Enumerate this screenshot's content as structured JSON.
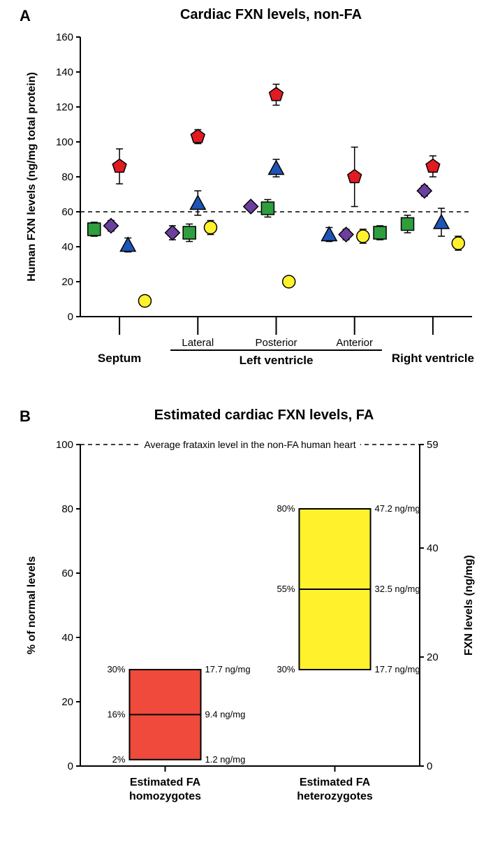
{
  "panelA": {
    "label": "A",
    "title": "Cardiac FXN levels, non-FA",
    "title_fontsize": 20,
    "ylabel": "Human FXN levels (ng/mg total protein)",
    "ylabel_fontsize": 16,
    "ylim": [
      0,
      160
    ],
    "ytick_step": 20,
    "refline_y": 60,
    "axis_color": "#000000",
    "grid_dash_color": "#000000",
    "background": "#ffffff",
    "x_categories": [
      "Septum",
      "Lateral",
      "Posterior",
      "Anterior",
      "Right ventricle"
    ],
    "x_group_label": "Left ventricle",
    "x_group_span": [
      1,
      3
    ],
    "marker_series": [
      {
        "shape": "square",
        "fill": "#2e9e3e",
        "stroke": "#000000"
      },
      {
        "shape": "diamond",
        "fill": "#6a3fa0",
        "stroke": "#000000"
      },
      {
        "shape": "triangle",
        "fill": "#1f55b8",
        "stroke": "#000000"
      },
      {
        "shape": "circle",
        "fill": "#fff22d",
        "stroke": "#000000"
      },
      {
        "shape": "pentagon",
        "fill": "#e11b22",
        "stroke": "#000000"
      }
    ],
    "marker_size": 9,
    "error_bar_color": "#000000",
    "points": {
      "Septum": [
        {
          "series": 0,
          "y": 50,
          "err": 4,
          "dx": -1.2
        },
        {
          "series": 1,
          "y": 52,
          "err": 3,
          "dx": -0.4
        },
        {
          "series": 2,
          "y": 41,
          "err": 4,
          "dx": 0.4
        },
        {
          "series": 3,
          "y": 9,
          "err": 3,
          "dx": 1.2
        },
        {
          "series": 4,
          "y": 86,
          "err": 10,
          "dx": 0.0
        }
      ],
      "Lateral": [
        {
          "series": 1,
          "y": 48,
          "err": 4,
          "dx": -1.2
        },
        {
          "series": 0,
          "y": 48,
          "err": 5,
          "dx": -0.4
        },
        {
          "series": 2,
          "y": 65,
          "err": 7,
          "dx": 0.0
        },
        {
          "series": 3,
          "y": 51,
          "err": 4,
          "dx": 0.6
        },
        {
          "series": 4,
          "y": 103,
          "err": 4,
          "dx": 0.0
        }
      ],
      "Posterior": [
        {
          "series": 1,
          "y": 63,
          "err": 2,
          "dx": -1.2
        },
        {
          "series": 0,
          "y": 62,
          "err": 5,
          "dx": -0.4
        },
        {
          "series": 2,
          "y": 85,
          "err": 5,
          "dx": 0.0
        },
        {
          "series": 3,
          "y": 20,
          "err": 3,
          "dx": 0.6
        },
        {
          "series": 4,
          "y": 127,
          "err": 6,
          "dx": 0.0
        }
      ],
      "Anterior": [
        {
          "series": 2,
          "y": 47,
          "err": 4,
          "dx": -1.2
        },
        {
          "series": 1,
          "y": 47,
          "err": 3,
          "dx": -0.4
        },
        {
          "series": 3,
          "y": 46,
          "err": 4,
          "dx": 0.4
        },
        {
          "series": 0,
          "y": 48,
          "err": 4,
          "dx": 1.2
        },
        {
          "series": 4,
          "y": 80,
          "err": 17,
          "dx": 0.0
        }
      ],
      "Right ventricle": [
        {
          "series": 0,
          "y": 53,
          "err": 5,
          "dx": -1.2
        },
        {
          "series": 1,
          "y": 72,
          "err": 3,
          "dx": -0.4
        },
        {
          "series": 2,
          "y": 54,
          "err": 8,
          "dx": 0.4
        },
        {
          "series": 3,
          "y": 42,
          "err": 4,
          "dx": 1.2
        },
        {
          "series": 4,
          "y": 86,
          "err": 6,
          "dx": 0.0
        }
      ]
    }
  },
  "panelB": {
    "label": "B",
    "title": "Estimated cardiac FXN levels, FA",
    "title_fontsize": 20,
    "left_ylabel": "% of normal levels",
    "right_ylabel": "FXN levels (ng/mg)",
    "ylabel_fontsize": 16,
    "left_ylim": [
      0,
      100
    ],
    "left_tick_step": 20,
    "right_top_label": "59",
    "right_ticks": [
      0,
      20,
      40
    ],
    "topline_label": "Average frataxin level in the non-FA human heart",
    "axis_color": "#000000",
    "categories": [
      {
        "name": "Estimated FA\nhomozygotes",
        "fill": "#ef4a3c",
        "stroke": "#000000",
        "low_pct": 2,
        "mid_pct": 16,
        "high_pct": 30,
        "low_lab_left": "2%",
        "mid_lab_left": "16%",
        "high_lab_left": "30%",
        "low_lab_right": "1.2 ng/mg",
        "mid_lab_right": "9.4 ng/mg",
        "high_lab_right": "17.7 ng/mg"
      },
      {
        "name": "Estimated FA\nheterozygotes",
        "fill": "#fff22d",
        "stroke": "#000000",
        "low_pct": 30,
        "mid_pct": 55,
        "high_pct": 80,
        "low_lab_left": "30%",
        "mid_lab_left": "55%",
        "high_lab_left": "80%",
        "low_lab_right": "17.7 ng/mg",
        "mid_lab_right": "32.5 ng/mg",
        "high_lab_right": "47.2 ng/mg"
      }
    ]
  }
}
